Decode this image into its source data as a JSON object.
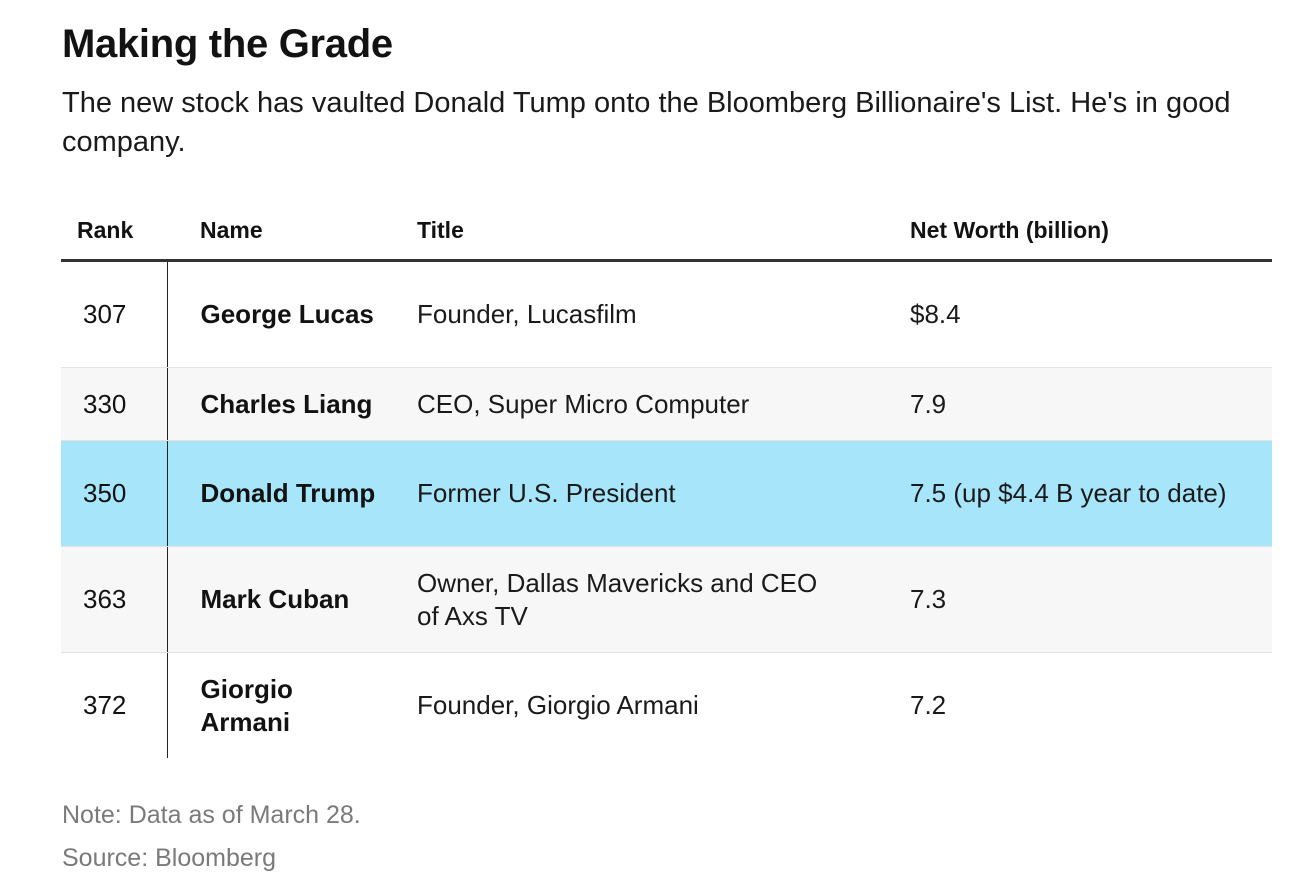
{
  "chart_data": {
    "type": "table",
    "title": "Making the Grade",
    "subtitle": "The new stock has vaulted Donald Tump onto the Bloomberg Billionaire's List. He's in good company.",
    "columns": [
      "Rank",
      "Name",
      "Title",
      "Net Worth (billion)"
    ],
    "rows": [
      {
        "rank": "307",
        "name": "George Lucas",
        "title": "Founder, Lucasfilm",
        "net_worth": "$8.4",
        "highlighted": false
      },
      {
        "rank": "330",
        "name": "Charles Liang",
        "title": "CEO, Super Micro Computer",
        "net_worth": "7.9",
        "highlighted": false
      },
      {
        "rank": "350",
        "name": "Donald Trump",
        "title": "Former U.S. President",
        "net_worth": "7.5 (up $4.4 B year to date)",
        "highlighted": true
      },
      {
        "rank": "363",
        "name": "Mark Cuban",
        "title": "Owner, Dallas Mavericks and CEO of Axs TV",
        "net_worth": "7.3",
        "highlighted": false
      },
      {
        "rank": "372",
        "name": "Giorgio Armani",
        "title": "Founder, Giorgio Armani",
        "net_worth": "7.2",
        "highlighted": false
      }
    ],
    "highlight_color": "#a7e5fb",
    "stripe_color": "#f7f7f7",
    "note": "Note: Data as of March 28.",
    "source": "Source: Bloomberg"
  }
}
